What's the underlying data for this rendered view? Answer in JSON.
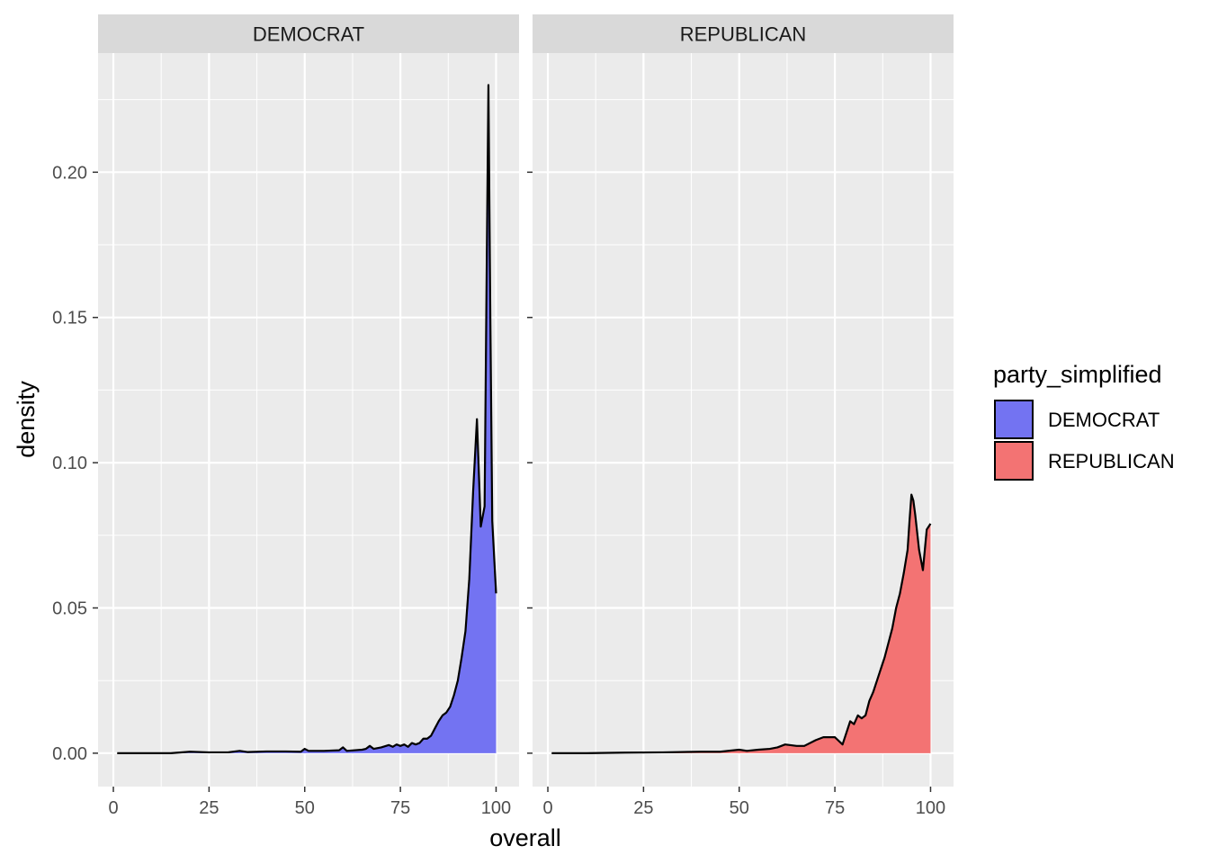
{
  "chart_data": {
    "type": "area",
    "facets": [
      "DEMOCRAT",
      "REPUBLICAN"
    ],
    "xlabel": "overall",
    "ylabel": "density",
    "x_ticks": [
      0,
      25,
      50,
      75,
      100
    ],
    "y_ticks": [
      0,
      0.05,
      0.1,
      0.15,
      0.2
    ],
    "y_tick_labels": [
      "0.00",
      "0.05",
      "0.10",
      "0.15",
      "0.20"
    ],
    "legend": {
      "title": "party_simplified",
      "entries": [
        {
          "label": "DEMOCRAT",
          "color": "#7373f2"
        },
        {
          "label": "REPUBLICAN",
          "color": "#f37373"
        }
      ]
    },
    "series": [
      {
        "name": "DEMOCRAT",
        "color": "#7373f2",
        "x": [
          1,
          5,
          10,
          15,
          20,
          25,
          30,
          33,
          35,
          40,
          45,
          49,
          50,
          51,
          55,
          59,
          60,
          61,
          65,
          66,
          67,
          68,
          70,
          72,
          73,
          74,
          75,
          76,
          77,
          78,
          79,
          80,
          81,
          82,
          83,
          84,
          85,
          86,
          87,
          88,
          89,
          90,
          91,
          92,
          93,
          94,
          95,
          96,
          97,
          97.5,
          98,
          98.5,
          99,
          100
        ],
        "y": [
          0,
          0,
          0,
          0,
          0.0005,
          0.0003,
          0.0003,
          0.0008,
          0.0004,
          0.0006,
          0.0006,
          0.0005,
          0.0015,
          0.0008,
          0.0008,
          0.001,
          0.002,
          0.0008,
          0.0012,
          0.0015,
          0.0025,
          0.0015,
          0.002,
          0.0028,
          0.0022,
          0.003,
          0.0025,
          0.003,
          0.0022,
          0.0035,
          0.003,
          0.0035,
          0.005,
          0.005,
          0.006,
          0.0085,
          0.011,
          0.013,
          0.014,
          0.016,
          0.02,
          0.025,
          0.033,
          0.042,
          0.06,
          0.09,
          0.115,
          0.078,
          0.085,
          0.16,
          0.23,
          0.15,
          0.08,
          0.055
        ]
      },
      {
        "name": "REPUBLICAN",
        "color": "#f37373",
        "x": [
          1,
          10,
          20,
          30,
          40,
          45,
          50,
          52,
          55,
          58,
          60,
          62,
          65,
          67,
          70,
          72,
          75,
          77,
          78,
          79,
          80,
          81,
          82,
          83,
          84,
          85,
          86,
          87,
          88,
          89,
          90,
          91,
          92,
          93,
          94,
          94.5,
          95,
          95.5,
          96,
          97,
          98,
          99,
          100
        ],
        "y": [
          0,
          0,
          0.0002,
          0.0003,
          0.0005,
          0.0005,
          0.0012,
          0.0008,
          0.0012,
          0.0015,
          0.002,
          0.003,
          0.0025,
          0.0025,
          0.0045,
          0.0055,
          0.0055,
          0.003,
          0.007,
          0.011,
          0.01,
          0.013,
          0.012,
          0.013,
          0.018,
          0.021,
          0.025,
          0.029,
          0.033,
          0.038,
          0.043,
          0.05,
          0.055,
          0.062,
          0.07,
          0.08,
          0.089,
          0.087,
          0.082,
          0.07,
          0.063,
          0.077,
          0.079
        ]
      }
    ],
    "xlim": [
      -4,
      106
    ],
    "ylim": [
      -0.0115,
      0.241
    ]
  }
}
